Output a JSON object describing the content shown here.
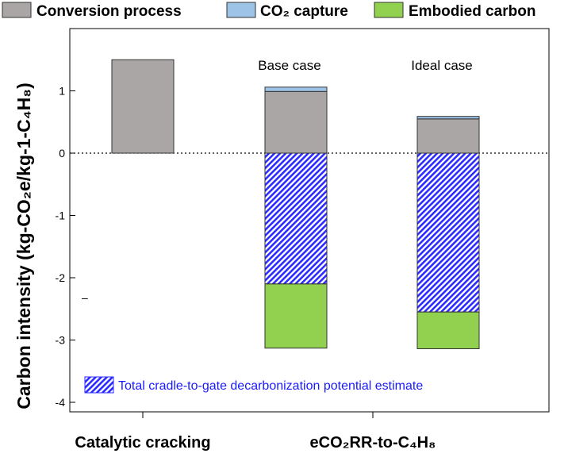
{
  "chart_data": {
    "type": "bar",
    "stacked": true,
    "categories": [
      "Catalytic cracking",
      "eCO₂RR-to-C₄H₈"
    ],
    "bars": [
      {
        "category": "Catalytic cracking",
        "label": "",
        "segments": {
          "conversion": 1.5
        }
      },
      {
        "category": "eCO₂RR-to-C₄H₈",
        "label": "Base case",
        "segments": {
          "conversion": 0.99,
          "capture": 0.07,
          "embodied": -1.03,
          "decarbonization": -2.1
        }
      },
      {
        "category": "eCO₂RR-to-C₄H₈",
        "label": "Ideal case",
        "segments": {
          "conversion": 0.55,
          "capture": 0.04,
          "embodied": -0.59,
          "decarbonization": -2.55
        }
      }
    ],
    "series": [
      {
        "key": "conversion",
        "name": "Conversion process",
        "color": "#aba6a6"
      },
      {
        "key": "capture",
        "name": "CO₂ capture",
        "color": "#9dc3e6"
      },
      {
        "key": "embodied",
        "name": "Embodied carbon",
        "color": "#92d050"
      },
      {
        "key": "decarbonization",
        "name": "Total cradle-to-gate decarbonization potential estimate",
        "color": "#2b2bff",
        "pattern": "diagonal-hatch"
      }
    ],
    "ylabel": "Carbon intensity (kg-CO₂e/kg-1-C₄H₈)",
    "ylim": [
      -4.2,
      1.55
    ],
    "yticks": [
      1,
      0,
      -1,
      -2,
      -3,
      -4
    ],
    "baseline": 0,
    "baseline_style": "dotted",
    "grid": false,
    "legend_placement": "top",
    "annotation": "Total cradle-to-gate decarbonization potential estimate",
    "stray_mark": "–"
  },
  "legend": [
    {
      "label": "Conversion process",
      "color": "#aba6a6"
    },
    {
      "label": "CO₂ capture",
      "color": "#9dc3e6"
    },
    {
      "label": "Embodied carbon",
      "color": "#92d050"
    }
  ]
}
